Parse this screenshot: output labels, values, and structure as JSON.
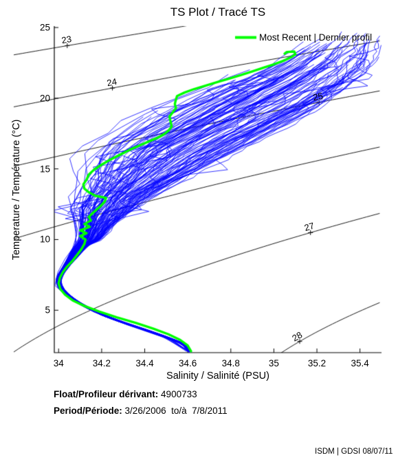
{
  "title": "TS Plot / Tracé TS",
  "legend": {
    "label": "Most Recent | Dernier profil",
    "line_color": "#00ff00"
  },
  "footer": {
    "float_label": "Float/Profileur dérivant:",
    "float_value": "4900733",
    "period_label": "Period/Période:",
    "period_value": "3/26/2006  to/à  7/8/2011",
    "credit": "ISDM | GDSI 08/07/11"
  },
  "chart_data": {
    "type": "line",
    "title": "TS Plot / Tracé TS",
    "xlabel": "Salinity / Salinité (PSU)",
    "ylabel": "Temperature / Température (°C)",
    "xlim": [
      33.98,
      35.5
    ],
    "ylim": [
      2,
      25.1
    ],
    "xticks": [
      34,
      34.2,
      34.4,
      34.6,
      34.8,
      35,
      35.2,
      35.4
    ],
    "yticks": [
      5,
      10,
      15,
      20,
      25
    ],
    "grid": false,
    "legend_position": "top-right-inside",
    "colors": {
      "profiles": "#0000ff",
      "recent": "#00ff00",
      "contours": "#000000",
      "axes": "#000000"
    },
    "isopycnals": {
      "comment": "sigma-theta density contour lines computed from EOS-80 at surface pressure",
      "values": [
        23,
        24,
        25,
        26,
        27,
        28
      ],
      "labels": [
        {
          "value": 23,
          "s": 34.04
        },
        {
          "value": 24,
          "s": 34.25
        },
        {
          "value": 25,
          "s": 35.21
        },
        {
          "value": 27,
          "s": 35.17
        },
        {
          "value": 28,
          "s": 35.12
        }
      ]
    },
    "recent_profile": {
      "name": "Most Recent | Dernier profil",
      "points_st": [
        [
          34.615,
          2.1
        ],
        [
          34.6,
          2.5
        ],
        [
          34.565,
          2.9
        ],
        [
          34.51,
          3.3
        ],
        [
          34.44,
          3.7
        ],
        [
          34.36,
          4.1
        ],
        [
          34.27,
          4.5
        ],
        [
          34.19,
          4.9
        ],
        [
          34.12,
          5.3
        ],
        [
          34.065,
          5.7
        ],
        [
          34.03,
          6.1
        ],
        [
          34.008,
          6.5
        ],
        [
          34.0,
          6.9
        ],
        [
          34.006,
          7.3
        ],
        [
          34.02,
          7.7
        ],
        [
          34.04,
          8.1
        ],
        [
          34.065,
          8.5
        ],
        [
          34.085,
          8.9
        ],
        [
          34.105,
          9.3
        ],
        [
          34.12,
          9.7
        ],
        [
          34.125,
          10.0
        ],
        [
          34.1,
          10.25
        ],
        [
          34.13,
          10.45
        ],
        [
          34.1,
          10.65
        ],
        [
          34.145,
          10.9
        ],
        [
          34.12,
          11.1
        ],
        [
          34.15,
          11.35
        ],
        [
          34.14,
          11.6
        ],
        [
          34.16,
          11.9
        ],
        [
          34.19,
          12.3
        ],
        [
          34.215,
          12.7
        ],
        [
          34.22,
          12.95
        ],
        [
          34.17,
          13.1
        ],
        [
          34.14,
          13.35
        ],
        [
          34.12,
          13.6
        ],
        [
          34.115,
          13.9
        ],
        [
          34.13,
          14.25
        ],
        [
          34.14,
          14.6
        ],
        [
          34.165,
          14.95
        ],
        [
          34.2,
          15.3
        ],
        [
          34.24,
          15.65
        ],
        [
          34.285,
          16.0
        ],
        [
          34.33,
          16.35
        ],
        [
          34.375,
          16.65
        ],
        [
          34.42,
          16.95
        ],
        [
          34.46,
          17.2
        ],
        [
          34.49,
          17.45
        ],
        [
          34.51,
          17.7
        ],
        [
          34.525,
          18.0
        ],
        [
          34.52,
          18.35
        ],
        [
          34.515,
          18.7
        ],
        [
          34.53,
          19.0
        ],
        [
          34.545,
          19.3
        ],
        [
          34.54,
          19.6
        ],
        [
          34.545,
          19.9
        ],
        [
          34.55,
          20.15
        ],
        [
          34.585,
          20.4
        ],
        [
          34.63,
          20.65
        ],
        [
          34.685,
          20.9
        ],
        [
          34.74,
          21.15
        ],
        [
          34.795,
          21.4
        ],
        [
          34.85,
          21.65
        ],
        [
          34.9,
          21.9
        ],
        [
          34.95,
          22.15
        ],
        [
          35.0,
          22.4
        ],
        [
          35.045,
          22.65
        ],
        [
          35.08,
          22.9
        ],
        [
          35.1,
          23.1
        ],
        [
          35.095,
          23.3
        ],
        [
          35.06,
          23.27
        ],
        [
          35.05,
          23.15
        ]
      ]
    },
    "profiles": {
      "count": 112,
      "seed": 20110708,
      "outliers": 8,
      "center_st": [
        [
          2.05,
          34.61
        ],
        [
          2.6,
          34.585
        ],
        [
          3.1,
          34.5
        ],
        [
          3.6,
          34.405
        ],
        [
          4.1,
          34.305
        ],
        [
          4.6,
          34.215
        ],
        [
          5.1,
          34.145
        ],
        [
          5.6,
          34.085
        ],
        [
          6.1,
          34.04
        ],
        [
          6.6,
          34.008
        ],
        [
          7.1,
          34.0
        ],
        [
          7.6,
          34.012
        ],
        [
          8.1,
          34.035
        ],
        [
          8.6,
          34.06
        ],
        [
          9.1,
          34.085
        ],
        [
          9.6,
          34.11
        ],
        [
          10,
          34.15
        ],
        [
          11,
          34.18
        ],
        [
          12,
          34.22
        ],
        [
          13,
          34.28
        ],
        [
          14,
          34.36
        ],
        [
          15,
          34.44
        ],
        [
          16,
          34.52
        ],
        [
          17,
          34.63
        ],
        [
          18,
          34.75
        ],
        [
          19,
          34.87
        ],
        [
          20,
          34.99
        ],
        [
          21,
          35.1
        ],
        [
          22,
          35.2
        ],
        [
          23,
          35.28
        ],
        [
          24,
          35.34
        ],
        [
          24.8,
          35.38
        ]
      ],
      "halfwidth_st": [
        [
          2.05,
          0.008
        ],
        [
          6,
          0.008
        ],
        [
          8,
          0.012
        ],
        [
          9.6,
          0.03
        ],
        [
          10,
          0.05
        ],
        [
          11,
          0.08
        ],
        [
          12,
          0.12
        ],
        [
          13,
          0.15
        ],
        [
          14,
          0.19
        ],
        [
          15,
          0.24
        ],
        [
          16,
          0.28
        ],
        [
          17,
          0.3
        ],
        [
          18,
          0.31
        ],
        [
          19,
          0.32
        ],
        [
          20,
          0.31
        ],
        [
          21,
          0.29
        ],
        [
          22,
          0.26
        ],
        [
          23,
          0.22
        ],
        [
          24,
          0.16
        ],
        [
          24.8,
          0.12
        ]
      ]
    }
  }
}
